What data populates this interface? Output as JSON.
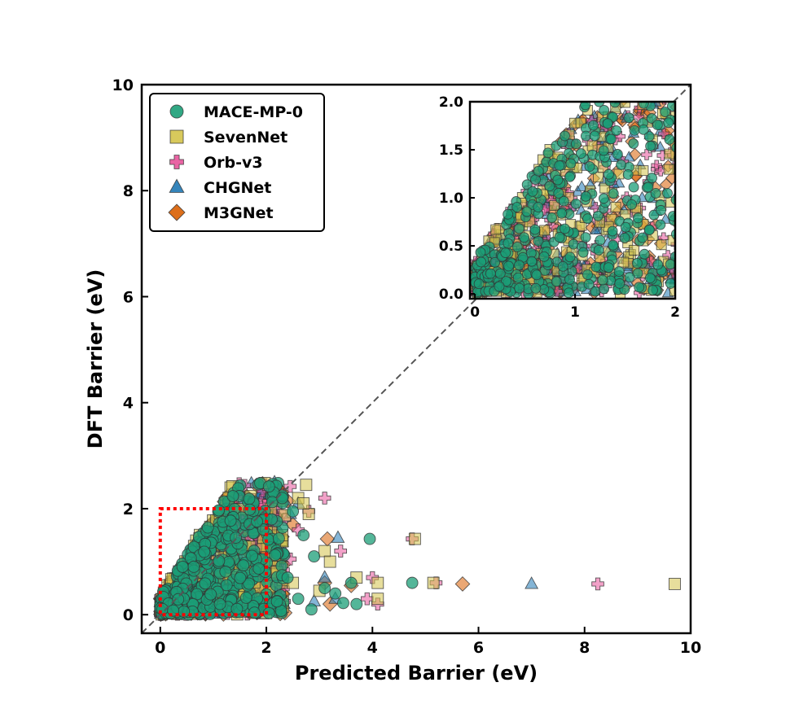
{
  "chart_data": [
    {
      "type": "scatter",
      "title": "",
      "xlabel": "Predicted Barrier (eV)",
      "ylabel": "DFT Barrier (eV)",
      "xlim": [
        -0.35,
        10
      ],
      "ylim": [
        -0.35,
        10
      ],
      "xticks": [
        "0",
        "2",
        "4",
        "6",
        "8",
        "10"
      ],
      "yticks": [
        "0",
        "2",
        "4",
        "6",
        "8",
        "10"
      ],
      "grid": false,
      "legend_position": "top-left",
      "reference_line": "y = x (dashed gray)",
      "highlight_box": {
        "x": [
          0,
          2
        ],
        "y": [
          0,
          2
        ],
        "style": "red dotted"
      },
      "series": [
        {
          "name": "MACE-MP-0",
          "marker": "circle",
          "color": "#1b9e77",
          "points": [
            [
              2.05,
              2.42
            ],
            [
              2.3,
              2.2
            ],
            [
              2.5,
              1.95
            ],
            [
              2.1,
              1.8
            ],
            [
              3.95,
              1.43
            ],
            [
              3.6,
              0.6
            ],
            [
              4.75,
              0.6
            ],
            [
              2.9,
              1.1
            ],
            [
              2.85,
              0.1
            ],
            [
              3.1,
              0.5
            ],
            [
              3.7,
              0.2
            ],
            [
              3.3,
              0.4
            ],
            [
              2.6,
              0.3
            ],
            [
              2.2,
              0.25
            ],
            [
              2.4,
              0.7
            ],
            [
              3.45,
              0.22
            ],
            [
              2.7,
              1.5
            ]
          ]
        },
        {
          "name": "SevenNet",
          "marker": "square",
          "color": "#d4c34a",
          "points": [
            [
              2.75,
              2.45
            ],
            [
              2.6,
              2.2
            ],
            [
              2.8,
              1.9
            ],
            [
              3.1,
              1.2
            ],
            [
              3.2,
              1.0
            ],
            [
              4.8,
              1.43
            ],
            [
              9.7,
              0.58
            ],
            [
              5.15,
              0.6
            ],
            [
              4.1,
              0.6
            ],
            [
              3.7,
              0.7
            ],
            [
              4.1,
              0.3
            ],
            [
              2.5,
              0.6
            ],
            [
              2.7,
              2.1
            ],
            [
              2.3,
              1.5
            ],
            [
              3.0,
              0.45
            ],
            [
              2.2,
              0.8
            ]
          ]
        },
        {
          "name": "Orb-v3",
          "marker": "plus",
          "color": "#e7539a",
          "points": [
            [
              2.45,
              2.42
            ],
            [
              3.1,
              2.2
            ],
            [
              2.35,
              1.8
            ],
            [
              2.6,
              1.6
            ],
            [
              2.45,
              1.05
            ],
            [
              3.4,
              1.2
            ],
            [
              4.75,
              1.43
            ],
            [
              5.2,
              0.6
            ],
            [
              8.25,
              0.58
            ],
            [
              4.0,
              0.7
            ],
            [
              4.1,
              0.2
            ],
            [
              2.3,
              0.6
            ],
            [
              3.9,
              0.3
            ],
            [
              2.8,
              1.95
            ],
            [
              2.2,
              1.45
            ]
          ]
        },
        {
          "name": "CHGNet",
          "marker": "triangle",
          "color": "#1f78b4",
          "points": [
            [
              2.2,
              2.2
            ],
            [
              2.45,
              1.9
            ],
            [
              3.35,
              1.45
            ],
            [
              7.0,
              0.58
            ],
            [
              3.3,
              0.3
            ],
            [
              2.9,
              0.25
            ],
            [
              2.1,
              0.5
            ],
            [
              2.6,
              2.1
            ],
            [
              3.1,
              0.7
            ]
          ]
        },
        {
          "name": "M3GNet",
          "marker": "diamond",
          "color": "#d95f02",
          "points": [
            [
              2.25,
              2.35
            ],
            [
              2.4,
              2.15
            ],
            [
              3.15,
              1.43
            ],
            [
              5.7,
              0.58
            ],
            [
              3.1,
              0.6
            ],
            [
              3.2,
              0.2
            ],
            [
              2.3,
              0.4
            ],
            [
              2.5,
              1.7
            ],
            [
              2.0,
              2.2
            ],
            [
              3.6,
              0.55
            ]
          ]
        }
      ],
      "dense_cluster": {
        "x_range": [
          0,
          2.4
        ],
        "y_range": [
          0,
          2.5
        ],
        "description": "overlapping markers of all five models, MACE-MP-0 drawn on top"
      }
    },
    {
      "type": "scatter",
      "title": "",
      "xlabel": "",
      "ylabel": "",
      "xlim": [
        -0.05,
        2.0
      ],
      "ylim": [
        -0.05,
        2.0
      ],
      "xticks": [
        "0",
        "1",
        "2"
      ],
      "yticks": [
        "0.0",
        "0.5",
        "1.0",
        "1.5",
        "2.0"
      ],
      "grid": false,
      "legend_position": "none",
      "placement": "inset top-right",
      "series": [
        "MACE-MP-0",
        "SevenNet",
        "Orb-v3",
        "CHGNet",
        "M3GNet"
      ],
      "description": "zoom of 0–2 eV region, same data"
    }
  ],
  "legend": {
    "items": [
      {
        "label": "MACE-MP-0",
        "marker": "circle",
        "color": "#1b9e77"
      },
      {
        "label": "SevenNet",
        "marker": "square",
        "color": "#d4c34a"
      },
      {
        "label": "Orb-v3",
        "marker": "plus",
        "color": "#e7539a"
      },
      {
        "label": "CHGNet",
        "marker": "triangle",
        "color": "#1f78b4"
      },
      {
        "label": "M3GNet",
        "marker": "diamond",
        "color": "#d95f02"
      }
    ]
  }
}
